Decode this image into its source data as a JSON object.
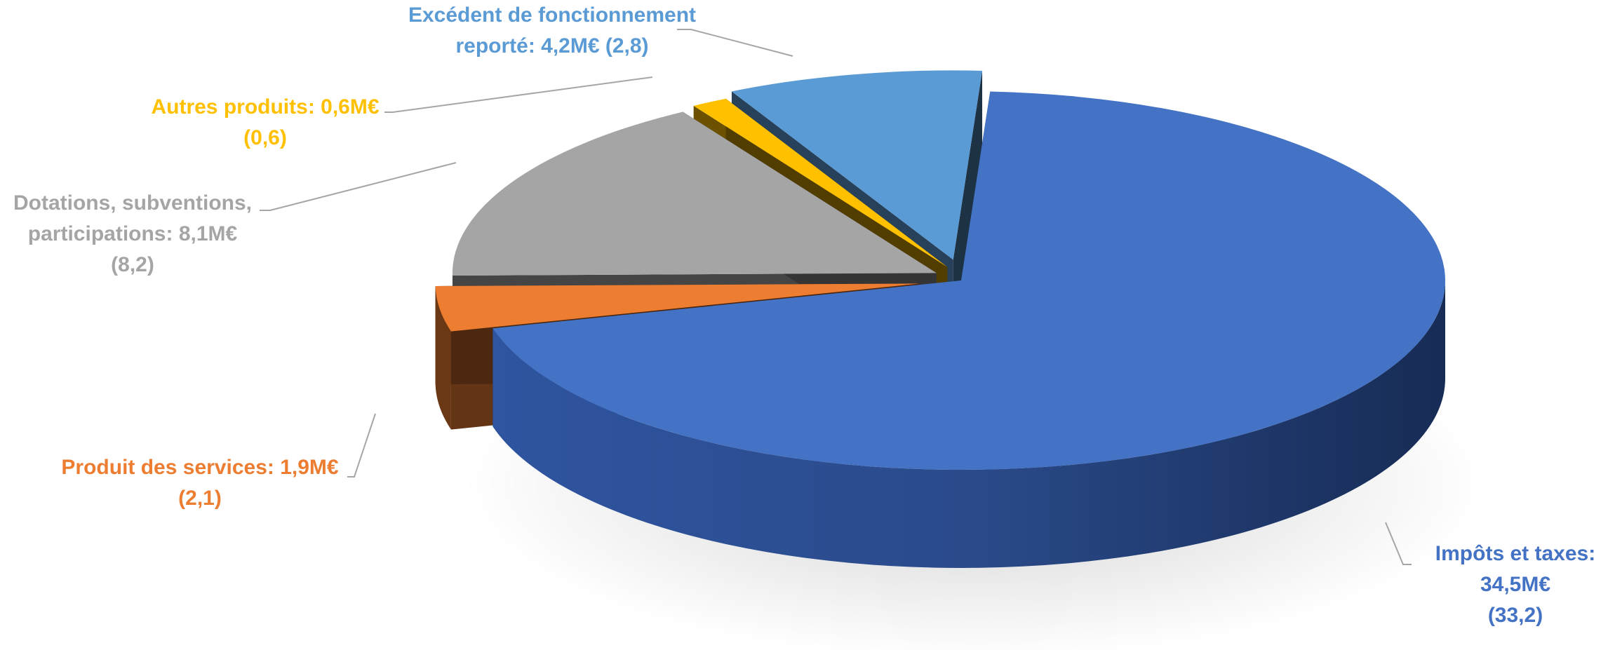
{
  "chart_data": {
    "type": "pie",
    "style": "3d-exploded",
    "title": "",
    "legend": "none",
    "slices": [
      {
        "name": "Impôts et taxes",
        "value": 34.5,
        "previous": 33.2,
        "unit": "M€",
        "color": "#4472C4",
        "label_lines": [
          "Impôts et taxes:",
          "34,5M€",
          "(33,2)"
        ]
      },
      {
        "name": "Produit des services",
        "value": 1.9,
        "previous": 2.1,
        "unit": "M€",
        "color": "#ED7D31",
        "label_lines": [
          "Produit des services: 1,9M€",
          "(2,1)"
        ]
      },
      {
        "name": "Dotations, subventions, participations",
        "value": 8.1,
        "previous": 8.2,
        "unit": "M€",
        "color": "#A5A5A5",
        "label_lines": [
          "Dotations, subventions,",
          "participations: 8,1M€",
          "(8,2)"
        ]
      },
      {
        "name": "Autres produits",
        "value": 0.6,
        "previous": 0.6,
        "unit": "M€",
        "color": "#FFC000",
        "label_lines": [
          "Autres produits: 0,6M€",
          "(0,6)"
        ]
      },
      {
        "name": "Excédent de fonctionnement reporté",
        "value": 4.2,
        "previous": 2.8,
        "unit": "M€",
        "color": "#5B9BD5",
        "label_lines": [
          "Excédent de fonctionnement",
          "reporté: 4,2M€ (2,8)"
        ]
      }
    ]
  }
}
